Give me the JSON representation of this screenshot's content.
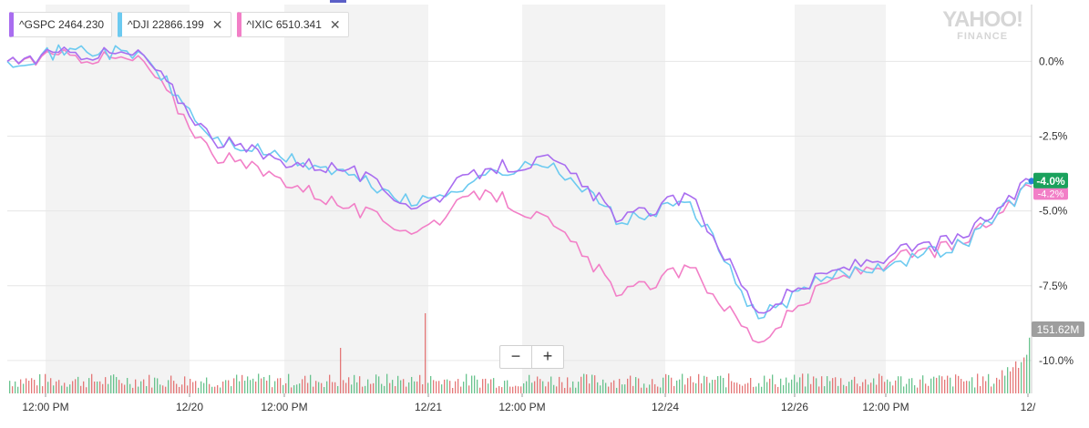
{
  "legend": [
    {
      "label": "^GSPC",
      "value": "2464.230",
      "color": "#a96df0",
      "closable": false
    },
    {
      "label": "^DJI",
      "value": "22866.199",
      "color": "#6ccaf0",
      "closable": true
    },
    {
      "label": "^IXIC",
      "value": "6510.341",
      "color": "#f27fc7",
      "closable": true
    }
  ],
  "close_glyph": "✕",
  "brand": {
    "line1": "YAHOO!",
    "line2": "FINANCE"
  },
  "zoom": {
    "out": "−",
    "in": "+"
  },
  "badges": {
    "current": "-4.0%",
    "current_color": "#1aa15c",
    "ixic_hidden": "-4.2%",
    "volume": "151.62M"
  },
  "chart_data": {
    "type": "line",
    "y_unit": "% change",
    "yticks": [
      "0.0%",
      "-2.5%",
      "-5.0%",
      "-7.5%",
      "-10.0%"
    ],
    "ytick_values": [
      0,
      -2.5,
      -5,
      -7.5,
      -10
    ],
    "ylim": [
      -11.1,
      1.9
    ],
    "x_tick_labels": [
      "12:00 PM",
      "12/20",
      "12:00 PM",
      "12/21",
      "12:00 PM",
      "12/24",
      "12/26",
      "12:00 PM",
      "12/"
    ],
    "x": [
      "12/19 09:30",
      "12/19 11:30",
      "12/19 15:00",
      "12/20 10:00",
      "12/20 13:00",
      "12/20 16:00",
      "12/21 10:00",
      "12/21 12:00",
      "12/21 16:00",
      "12/24 11:30",
      "12/24 14:00",
      "12/26 09:30",
      "12/26 11:30",
      "12/26 13:00",
      "12/26 15:00",
      "12/26 16:00"
    ],
    "series": [
      {
        "name": "^GSPC",
        "color": "#a96df0",
        "values": [
          0.0,
          0.3,
          0.2,
          -2.6,
          -3.3,
          -3.6,
          -4.9,
          -3.6,
          -3.3,
          -5.3,
          -4.5,
          -8.4,
          -7.1,
          -6.4,
          -5.9,
          -4.0
        ]
      },
      {
        "name": "^DJI",
        "color": "#6ccaf0",
        "values": [
          0.0,
          0.4,
          0.2,
          -2.6,
          -3.2,
          -3.8,
          -4.8,
          -3.8,
          -3.4,
          -5.4,
          -4.7,
          -8.6,
          -7.2,
          -6.7,
          -6.1,
          -4.1
        ]
      },
      {
        "name": "^IXIC",
        "color": "#f27fc7",
        "values": [
          0.0,
          0.2,
          0.0,
          -3.1,
          -3.9,
          -4.9,
          -5.7,
          -4.3,
          -5.5,
          -7.8,
          -6.9,
          -9.4,
          -7.4,
          -6.6,
          -6.1,
          -4.2
        ]
      }
    ],
    "volume_label": "151.62M",
    "grid": true,
    "legend_position": "top-left"
  }
}
